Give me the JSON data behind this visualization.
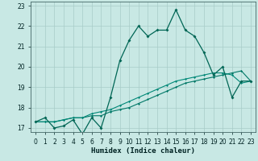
{
  "xlabel": "Humidex (Indice chaleur)",
  "ylabel": "",
  "background_color": "#c8e8e4",
  "grid_color": "#a8ccc8",
  "line_color_main": "#006655",
  "line_color_flat1": "#007766",
  "line_color_flat2": "#008877",
  "xlim": [
    -0.5,
    23.5
  ],
  "ylim": [
    16.8,
    23.2
  ],
  "xticks": [
    0,
    1,
    2,
    3,
    4,
    5,
    6,
    7,
    8,
    9,
    10,
    11,
    12,
    13,
    14,
    15,
    16,
    17,
    18,
    19,
    20,
    21,
    22,
    23
  ],
  "yticks": [
    17,
    18,
    19,
    20,
    21,
    22,
    23
  ],
  "line1_x": [
    0,
    1,
    2,
    3,
    4,
    5,
    6,
    7,
    8,
    9,
    10,
    11,
    12,
    13,
    14,
    15,
    16,
    17,
    18,
    19,
    20,
    21,
    22,
    23
  ],
  "line1_y": [
    17.3,
    17.5,
    17.0,
    17.1,
    17.4,
    16.7,
    17.5,
    17.0,
    18.5,
    20.3,
    21.3,
    22.0,
    21.5,
    21.8,
    21.8,
    22.8,
    21.8,
    21.5,
    20.7,
    19.6,
    20.0,
    18.5,
    19.3,
    19.3
  ],
  "line2_x": [
    0,
    1,
    2,
    3,
    4,
    5,
    6,
    7,
    8,
    9,
    10,
    11,
    12,
    13,
    14,
    15,
    16,
    17,
    18,
    19,
    20,
    21,
    22,
    23
  ],
  "line2_y": [
    17.3,
    17.3,
    17.3,
    17.4,
    17.5,
    17.5,
    17.6,
    17.6,
    17.8,
    17.9,
    18.0,
    18.2,
    18.4,
    18.6,
    18.8,
    19.0,
    19.2,
    19.3,
    19.4,
    19.5,
    19.6,
    19.7,
    19.8,
    19.3
  ],
  "line3_x": [
    0,
    1,
    2,
    3,
    4,
    5,
    6,
    7,
    8,
    9,
    10,
    11,
    12,
    13,
    14,
    15,
    16,
    17,
    18,
    19,
    20,
    21,
    22,
    23
  ],
  "line3_y": [
    17.3,
    17.3,
    17.3,
    17.4,
    17.5,
    17.5,
    17.7,
    17.8,
    17.9,
    18.1,
    18.3,
    18.5,
    18.7,
    18.9,
    19.1,
    19.3,
    19.4,
    19.5,
    19.6,
    19.7,
    19.7,
    19.6,
    19.2,
    19.3
  ]
}
